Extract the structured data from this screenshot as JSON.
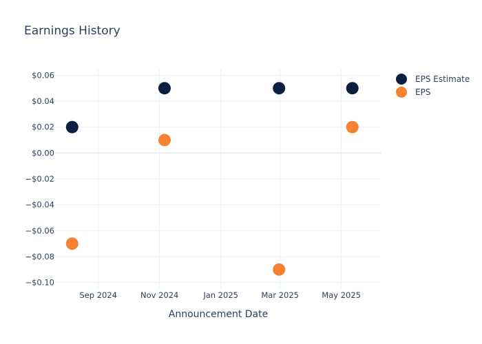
{
  "chart_data": {
    "type": "scatter",
    "title": "Earnings History",
    "xlabel": "Announcement Date",
    "ylabel": "",
    "ylim": [
      -0.105,
      0.065
    ],
    "xlim": [
      "2024-07-20",
      "2025-06-10"
    ],
    "y_ticks": [
      0.06,
      0.04,
      0.02,
      0.0,
      -0.02,
      -0.04,
      -0.06,
      -0.08,
      -0.1
    ],
    "y_tick_labels": [
      "$0.06",
      "$0.04",
      "$0.02",
      "$0.00",
      "−$0.02",
      "−$0.04",
      "−$0.06",
      "−$0.08",
      "−$0.10"
    ],
    "x_ticks": [
      "2024-09-01",
      "2024-11-01",
      "2025-01-01",
      "2025-03-01",
      "2025-05-01"
    ],
    "x_tick_labels": [
      "Sep 2024",
      "Nov 2024",
      "Jan 2025",
      "Mar 2025",
      "May 2025"
    ],
    "grid": true,
    "legend_position": "top-right",
    "series": [
      {
        "name": "EPS Estimate",
        "color": "#0b1f3f",
        "x": [
          "2024-08-06",
          "2024-11-06",
          "2025-02-28",
          "2025-05-12"
        ],
        "y": [
          0.02,
          0.05,
          0.05,
          0.05
        ]
      },
      {
        "name": "EPS",
        "color": "#f58231",
        "x": [
          "2024-08-06",
          "2024-11-06",
          "2025-02-28",
          "2025-05-12"
        ],
        "y": [
          -0.07,
          0.01,
          -0.09,
          0.02
        ]
      }
    ]
  }
}
